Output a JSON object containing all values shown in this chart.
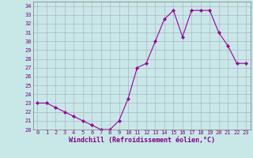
{
  "x": [
    0,
    1,
    2,
    3,
    4,
    5,
    6,
    7,
    8,
    9,
    10,
    11,
    12,
    13,
    14,
    15,
    16,
    17,
    18,
    19,
    20,
    21,
    22,
    23
  ],
  "y": [
    23,
    23,
    22.5,
    22,
    21.5,
    21,
    20.5,
    20,
    20,
    21,
    23.5,
    27,
    27.5,
    30,
    32.5,
    33.5,
    30.5,
    33.5,
    33.5,
    33.5,
    31,
    29.5,
    27.5,
    27.5
  ],
  "line_color": "#990099",
  "marker": "D",
  "marker_size": 2.0,
  "bg_color": "#c8e8e8",
  "grid_color": "#b0b0c8",
  "xlabel": "Windchill (Refroidissement éolien,°C)",
  "xlim": [
    -0.5,
    23.5
  ],
  "ylim": [
    20,
    34.5
  ],
  "yticks": [
    20,
    21,
    22,
    23,
    24,
    25,
    26,
    27,
    28,
    29,
    30,
    31,
    32,
    33,
    34
  ],
  "xticks": [
    0,
    1,
    2,
    3,
    4,
    5,
    6,
    7,
    8,
    9,
    10,
    11,
    12,
    13,
    14,
    15,
    16,
    17,
    18,
    19,
    20,
    21,
    22,
    23
  ],
  "xtick_labels": [
    "0",
    "1",
    "2",
    "3",
    "4",
    "5",
    "6",
    "7",
    "8",
    "9",
    "10",
    "11",
    "12",
    "13",
    "14",
    "15",
    "16",
    "17",
    "18",
    "19",
    "20",
    "21",
    "22",
    "23"
  ],
  "ytick_labels": [
    "20",
    "21",
    "22",
    "23",
    "24",
    "25",
    "26",
    "27",
    "28",
    "29",
    "30",
    "31",
    "32",
    "33",
    "34"
  ],
  "label_color": "#800080",
  "tick_fontsize": 5.0,
  "xlabel_fontsize": 6.0
}
